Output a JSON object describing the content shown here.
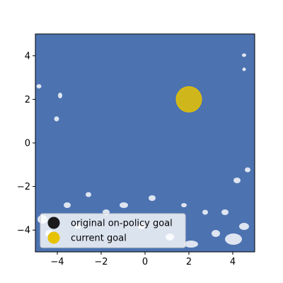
{
  "chart_data": {
    "type": "scatter",
    "title": "",
    "xlabel": "",
    "ylabel": "",
    "xlim": [
      -5,
      5
    ],
    "ylim": [
      -5,
      5
    ],
    "xticks": [
      -4,
      -2,
      0,
      2,
      4
    ],
    "yticks": [
      -4,
      -2,
      0,
      2,
      4
    ],
    "x_tick_labels": [
      "−4",
      "−2",
      "0",
      "2",
      "4"
    ],
    "y_tick_labels": [
      "−4",
      "−2",
      "0",
      "2",
      "4"
    ],
    "grid": false,
    "background_field_color": "#4c72b0",
    "legend_position": "lower-left",
    "series": [
      {
        "name": "original on-policy goal",
        "color": "#1a1a1a",
        "points": []
      },
      {
        "name": "current goal",
        "color": "#e6c200",
        "points": [
          [
            2,
            2
          ]
        ]
      }
    ]
  }
}
